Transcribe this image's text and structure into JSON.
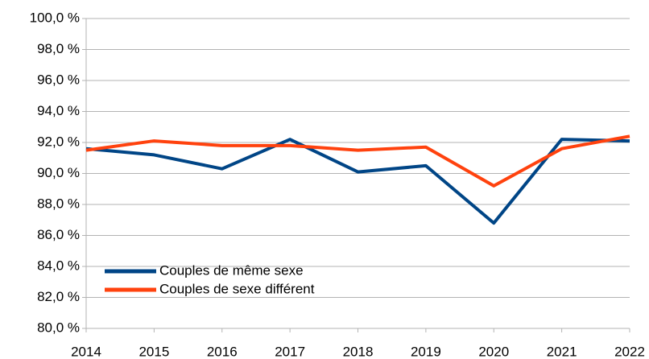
{
  "chart_data": {
    "type": "line",
    "categories": [
      "2014",
      "2015",
      "2016",
      "2017",
      "2018",
      "2019",
      "2020",
      "2021",
      "2022"
    ],
    "series": [
      {
        "name": "Couples de même sexe",
        "color": "#004586",
        "values": [
          91.6,
          91.2,
          90.3,
          92.2,
          90.1,
          90.5,
          86.8,
          92.2,
          92.1
        ]
      },
      {
        "name": "Couples de sexe différent",
        "color": "#ff420e",
        "values": [
          91.5,
          92.1,
          91.8,
          91.8,
          91.5,
          91.7,
          89.2,
          91.6,
          92.4
        ]
      }
    ],
    "ylim": [
      80,
      100
    ],
    "yticks": [
      {
        "value": 80,
        "label": "80,0 %"
      },
      {
        "value": 82,
        "label": "82,0 %"
      },
      {
        "value": 84,
        "label": "84,0 %"
      },
      {
        "value": 86,
        "label": "86,0 %"
      },
      {
        "value": 88,
        "label": "88,0 %"
      },
      {
        "value": 90,
        "label": "90,0 %"
      },
      {
        "value": 92,
        "label": "92,0 %"
      },
      {
        "value": 94,
        "label": "94,0 %"
      },
      {
        "value": 96,
        "label": "96,0 %"
      },
      {
        "value": 98,
        "label": "98,0 %"
      },
      {
        "value": 100,
        "label": "100,0 %"
      }
    ],
    "grid": true,
    "legend": "lower left"
  }
}
